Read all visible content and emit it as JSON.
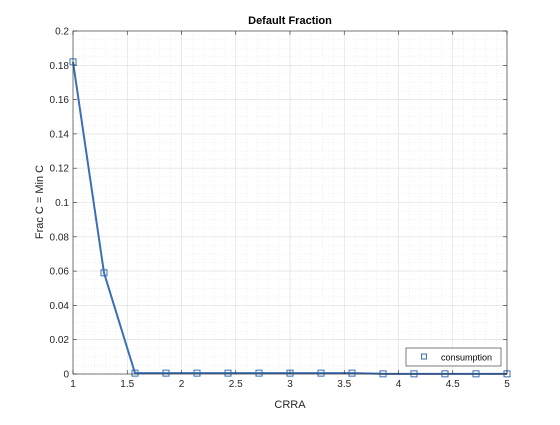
{
  "chart_data": {
    "type": "line",
    "title": "Default Fraction",
    "xlabel": "CRRA",
    "ylabel": "Frac C = Min C",
    "xlim": [
      1,
      5
    ],
    "ylim": [
      0,
      0.2
    ],
    "xticks": [
      1,
      1.5,
      2,
      2.5,
      3,
      3.5,
      4,
      4.5,
      5
    ],
    "xtick_labels": [
      "1",
      "1.5",
      "2",
      "2.5",
      "3",
      "3.5",
      "4",
      "4.5",
      "5"
    ],
    "yticks": [
      0,
      0.02,
      0.04,
      0.06,
      0.08,
      0.1,
      0.12,
      0.14,
      0.16,
      0.18,
      0.2
    ],
    "ytick_labels": [
      "0",
      "0.02",
      "0.04",
      "0.06",
      "0.08",
      "0.1",
      "0.12",
      "0.14",
      "0.16",
      "0.18",
      "0.2"
    ],
    "grid": true,
    "minor_grid": true,
    "legend_position": "bottom-right",
    "series": [
      {
        "name": "consumption",
        "color": "#3a6fb5",
        "marker": "square",
        "x": [
          1,
          1.2857,
          1.5714,
          1.8571,
          2.1429,
          2.4286,
          2.7143,
          3,
          3.2857,
          3.5714,
          3.8571,
          4.1429,
          4.4286,
          4.7143,
          5
        ],
        "y": [
          0.182,
          0.059,
          0.0005,
          0.0005,
          0.0005,
          0.0005,
          0.0005,
          0.0005,
          0.0005,
          0.0005,
          0.0001,
          0.0001,
          0.0001,
          0.0001,
          0.0001
        ]
      }
    ]
  }
}
